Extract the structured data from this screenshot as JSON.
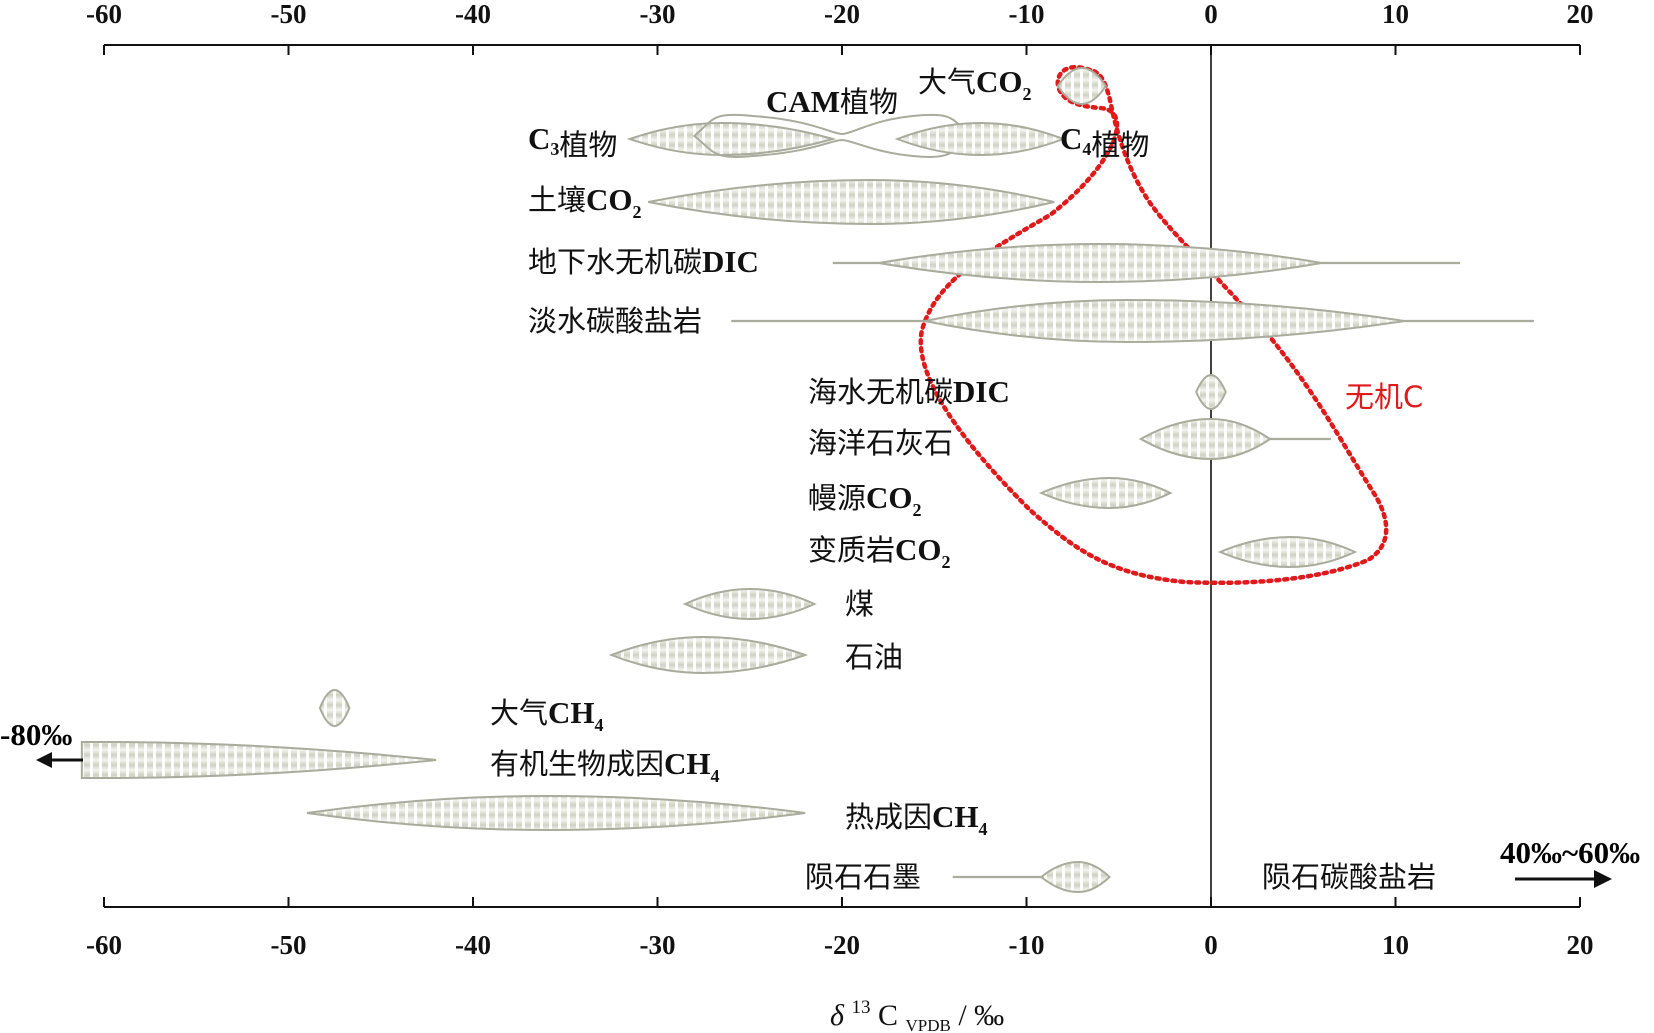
{
  "chart_data": {
    "type": "range-distribution",
    "xlabel": "δ13C VPDB / ‰",
    "xlabel_parts": {
      "delta": "δ",
      "sup": "13",
      "base": "C",
      "sub": "VPDB",
      "unit": " / ‰"
    },
    "xlim": [
      -60,
      20
    ],
    "xticks": [
      -60,
      -50,
      -40,
      -30,
      -20,
      -10,
      0,
      10,
      20
    ],
    "colors": {
      "fill": "#d2d4c7",
      "stroke": "#a9ab9c",
      "stripe": "#ffffff",
      "region": "#e0191b",
      "axis": "#111111"
    },
    "series": [
      {
        "label": "大气CO",
        "sub": "2",
        "range": [
          -8.3,
          -5.7
        ],
        "peak": -7.0
      },
      {
        "label": "C3植物",
        "parts": [
          {
            "t": "C",
            "b": true
          },
          {
            "t": "3",
            "sub": true
          },
          {
            "t": "植物"
          }
        ],
        "range": [
          -31.5,
          -20.5
        ],
        "peak": -26.5
      },
      {
        "label": "CAM植物",
        "range": [
          -28,
          -13
        ],
        "peak": -20,
        "style": "outline"
      },
      {
        "label": "C4植物",
        "parts": [
          {
            "t": "C",
            "b": true
          },
          {
            "t": "4",
            "sub": true
          },
          {
            "t": "植物"
          }
        ],
        "range": [
          -17,
          -8
        ],
        "peak": -12.5
      },
      {
        "label": "土壤CO",
        "sub": "2",
        "range": [
          -30.5,
          -8.5
        ],
        "peak": -18.5
      },
      {
        "label": "地下水无机碳DIC",
        "range": [
          -20.5,
          13.5
        ],
        "core": [
          -18,
          6
        ],
        "peak": -6
      },
      {
        "label": "淡水碳酸盐岩",
        "range": [
          -26,
          17.5
        ],
        "core": [
          -15.5,
          10.5
        ],
        "peak": -4.5
      },
      {
        "label": "海水无机碳DIC",
        "range": [
          -0.8,
          0.8
        ],
        "peak": 0
      },
      {
        "label": "海洋石灰石",
        "range": [
          -3.8,
          6.5
        ],
        "core": [
          -3.8,
          3.2
        ],
        "peak": 0
      },
      {
        "label": "幔源CO",
        "sub": "2",
        "range": [
          -9.2,
          -2.2
        ],
        "peak": -5.5
      },
      {
        "label": "变质岩CO",
        "sub": "2",
        "range": [
          0.5,
          7.8
        ],
        "peak": 4.3
      },
      {
        "label": "煤",
        "range": [
          -28.5,
          -21.5
        ],
        "peak": -25
      },
      {
        "label": "石油",
        "range": [
          -32.5,
          -22
        ],
        "peak": -27.5
      },
      {
        "label": "大气CH",
        "sub": "4",
        "range": [
          -48.3,
          -46.7
        ],
        "peak": -47.5
      },
      {
        "label": "有机生物成因CH",
        "sub": "4",
        "range": [
          -80,
          -42
        ],
        "peak": -60,
        "note": "-80‰"
      },
      {
        "label": "热成因CH",
        "sub": "4",
        "range": [
          -49,
          -22
        ],
        "peak": -36
      },
      {
        "label": "陨石石墨",
        "range": [
          -14,
          -5.5
        ],
        "core": [
          -9.2,
          -5.5
        ],
        "peak": -7.2
      },
      {
        "label": "陨石碳酸盐岩",
        "range": [
          40,
          60
        ],
        "note": "40‰~60‰"
      }
    ],
    "region": {
      "label": "无机C"
    },
    "annotations": {
      "left_arrow": "-80‰",
      "right_arrow": "40‰~60‰"
    }
  }
}
